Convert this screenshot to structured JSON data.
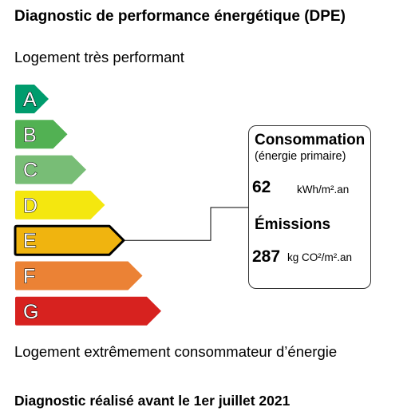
{
  "title": "Diagnostic de performance énergétique (DPE)",
  "top_label": "Logement très performant",
  "bottom_label": "Logement extrêmement consommateur d’énergie",
  "footer": "Diagnostic réalisé avant le 1er juillet 2021",
  "classes": [
    {
      "letter": "A",
      "color": "#009c6d"
    },
    {
      "letter": "B",
      "color": "#52b153"
    },
    {
      "letter": "C",
      "color": "#78bd76"
    },
    {
      "letter": "D",
      "color": "#f4e70f"
    },
    {
      "letter": "E",
      "color": "#f0b40f"
    },
    {
      "letter": "F",
      "color": "#eb8235"
    },
    {
      "letter": "G",
      "color": "#d7221f"
    }
  ],
  "current_class": "E",
  "info": {
    "consumption_heading": "Consommation",
    "consumption_sub": "(énergie primaire)",
    "consumption_value": "62",
    "consumption_unit": "kWh/m².an",
    "emissions_heading": "Émissions",
    "emissions_value": "287",
    "emissions_unit": "kg CO²/m².an"
  }
}
